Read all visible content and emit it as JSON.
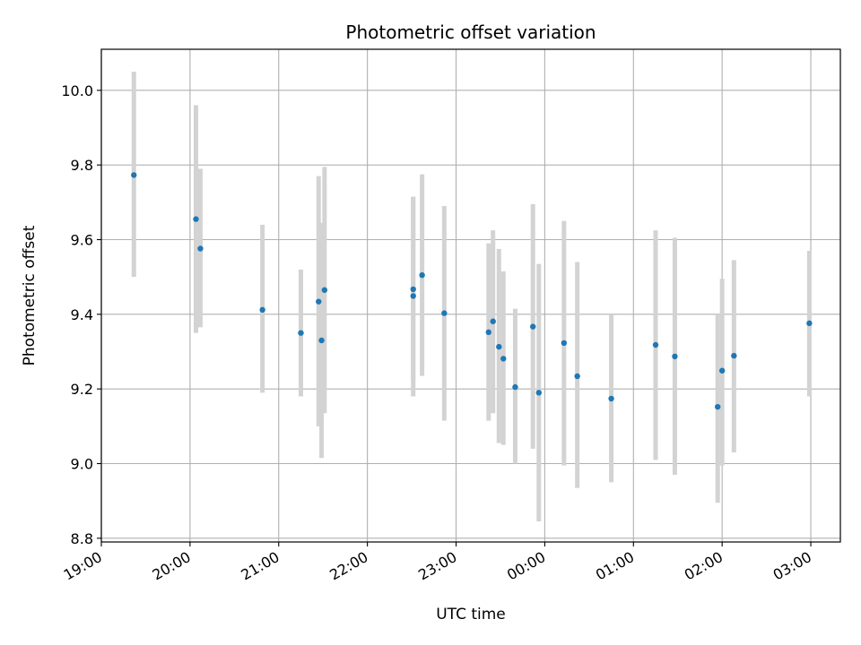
{
  "chart_data": {
    "type": "scatter",
    "title": "Photometric offset variation",
    "xlabel": "UTC time",
    "ylabel": "Photometric offset",
    "xlim": [
      "19:00",
      "03:20"
    ],
    "ylim": [
      8.79,
      10.11
    ],
    "x_ticks": [
      "19:00",
      "20:00",
      "21:00",
      "22:00",
      "23:00",
      "00:00",
      "01:00",
      "02:00",
      "03:00"
    ],
    "y_ticks": [
      "8.8",
      "9.0",
      "9.2",
      "9.4",
      "9.6",
      "9.8",
      "10.0"
    ],
    "grid": true,
    "colors": {
      "point": "#1f77b4",
      "errorbar": "#d3d3d3",
      "grid": "#b0b0b0"
    },
    "points": [
      {
        "x": "19:22",
        "y": 9.773,
        "low": 9.5,
        "high": 10.05
      },
      {
        "x": "20:04",
        "y": 9.655,
        "low": 9.35,
        "high": 9.96
      },
      {
        "x": "20:07",
        "y": 9.576,
        "low": 9.365,
        "high": 9.79
      },
      {
        "x": "20:49",
        "y": 9.412,
        "low": 9.19,
        "high": 9.64
      },
      {
        "x": "21:15",
        "y": 9.35,
        "low": 9.18,
        "high": 9.52
      },
      {
        "x": "21:27",
        "y": 9.434,
        "low": 9.1,
        "high": 9.77
      },
      {
        "x": "21:29",
        "y": 9.33,
        "low": 9.015,
        "high": 9.645
      },
      {
        "x": "21:31",
        "y": 9.465,
        "low": 9.135,
        "high": 9.795
      },
      {
        "x": "22:31",
        "y": 9.467,
        "low": 9.22,
        "high": 9.715
      },
      {
        "x": "22:31",
        "y": 9.449,
        "low": 9.18,
        "high": 9.715
      },
      {
        "x": "22:37",
        "y": 9.505,
        "low": 9.235,
        "high": 9.775
      },
      {
        "x": "22:52",
        "y": 9.403,
        "low": 9.115,
        "high": 9.69
      },
      {
        "x": "23:22",
        "y": 9.352,
        "low": 9.115,
        "high": 9.59
      },
      {
        "x": "23:25",
        "y": 9.381,
        "low": 9.135,
        "high": 9.625
      },
      {
        "x": "23:29",
        "y": 9.313,
        "low": 9.055,
        "high": 9.575
      },
      {
        "x": "23:32",
        "y": 9.281,
        "low": 9.05,
        "high": 9.515
      },
      {
        "x": "23:40",
        "y": 9.205,
        "low": 9.0,
        "high": 9.415
      },
      {
        "x": "23:52",
        "y": 9.367,
        "low": 9.04,
        "high": 9.695
      },
      {
        "x": "23:56",
        "y": 9.19,
        "low": 8.845,
        "high": 9.535
      },
      {
        "x": "00:13",
        "y": 9.323,
        "low": 8.995,
        "high": 9.65
      },
      {
        "x": "00:22",
        "y": 9.234,
        "low": 8.935,
        "high": 9.54
      },
      {
        "x": "00:45",
        "y": 9.174,
        "low": 8.95,
        "high": 9.4
      },
      {
        "x": "01:15",
        "y": 9.318,
        "low": 9.01,
        "high": 9.625
      },
      {
        "x": "01:28",
        "y": 9.287,
        "low": 8.97,
        "high": 9.605
      },
      {
        "x": "01:57",
        "y": 9.152,
        "low": 8.895,
        "high": 9.4
      },
      {
        "x": "02:00",
        "y": 9.249,
        "low": 8.995,
        "high": 9.495
      },
      {
        "x": "02:08",
        "y": 9.289,
        "low": 9.03,
        "high": 9.545
      },
      {
        "x": "02:59",
        "y": 9.376,
        "low": 9.18,
        "high": 9.57
      }
    ]
  }
}
